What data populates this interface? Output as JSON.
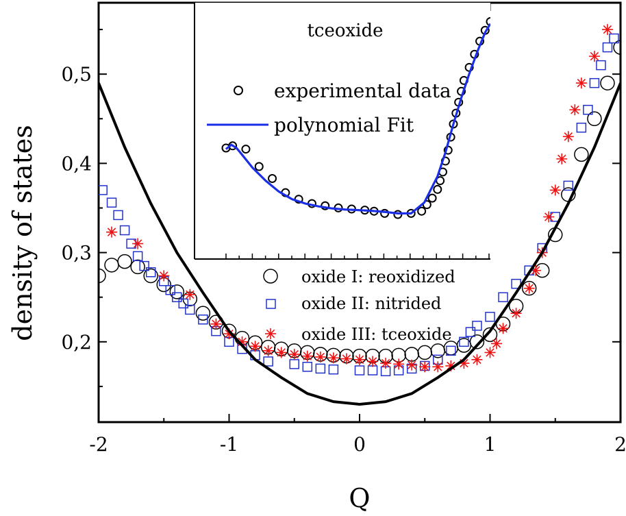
{
  "chart_data": [
    {
      "type": "scatter",
      "xlabel": "Q",
      "ylabel": "density of states",
      "xlim": [
        -2,
        2
      ],
      "ylim": [
        0.11,
        0.58
      ],
      "xticks": [
        -2,
        -1,
        0,
        1,
        2
      ],
      "xtick_labels": [
        "-2",
        "-1",
        "0",
        "1",
        "2"
      ],
      "yticks": [
        0.2,
        0.3,
        0.4,
        0.5
      ],
      "ytick_labels": [
        "0,2",
        "0,3",
        "0,4",
        "0,5"
      ],
      "grid": false,
      "legend_position": "center",
      "series": [
        {
          "name": "oxide I: reoxidized",
          "marker": "circle",
          "color": "#000000",
          "x": [
            -2.0,
            -1.9,
            -1.8,
            -1.7,
            -1.6,
            -1.5,
            -1.4,
            -1.3,
            -1.2,
            -1.1,
            -1.0,
            -0.9,
            -0.8,
            -0.7,
            -0.6,
            -0.5,
            -0.4,
            -0.3,
            -0.2,
            -0.1,
            0.0,
            0.1,
            0.2,
            0.3,
            0.4,
            0.5,
            0.6,
            0.7,
            0.8,
            0.9,
            1.0,
            1.1,
            1.2,
            1.3,
            1.4,
            1.5,
            1.6,
            1.7,
            1.8,
            1.9,
            2.0
          ],
          "y": [
            0.274,
            0.286,
            0.29,
            0.284,
            0.274,
            0.264,
            0.256,
            0.248,
            0.232,
            0.222,
            0.212,
            0.204,
            0.199,
            0.194,
            0.192,
            0.19,
            0.188,
            0.186,
            0.185,
            0.184,
            0.184,
            0.184,
            0.184,
            0.185,
            0.186,
            0.188,
            0.19,
            0.193,
            0.196,
            0.2,
            0.208,
            0.22,
            0.24,
            0.26,
            0.28,
            0.32,
            0.365,
            0.41,
            0.45,
            0.49,
            0.53
          ]
        },
        {
          "name": "oxide II: nitrided",
          "marker": "square",
          "color": "#2233cc",
          "x": [
            -1.97,
            -1.9,
            -1.85,
            -1.8,
            -1.75,
            -1.7,
            -1.65,
            -1.6,
            -1.5,
            -1.45,
            -1.4,
            -1.35,
            -1.3,
            -1.2,
            -1.1,
            -1.0,
            -0.9,
            -0.8,
            -0.7,
            -0.5,
            -0.4,
            -0.3,
            -0.2,
            0.0,
            0.1,
            0.2,
            0.3,
            0.4,
            0.5,
            0.6,
            0.7,
            0.8,
            0.85,
            0.9,
            1.0,
            1.1,
            1.2,
            1.3,
            1.4,
            1.5,
            1.6,
            1.7,
            1.75,
            1.8,
            1.85,
            1.9,
            1.95
          ],
          "y": [
            0.37,
            0.356,
            0.342,
            0.325,
            0.31,
            0.296,
            0.285,
            0.278,
            0.268,
            0.258,
            0.25,
            0.243,
            0.236,
            0.225,
            0.212,
            0.2,
            0.192,
            0.185,
            0.178,
            0.175,
            0.172,
            0.17,
            0.169,
            0.168,
            0.168,
            0.167,
            0.168,
            0.17,
            0.173,
            0.18,
            0.19,
            0.2,
            0.211,
            0.218,
            0.228,
            0.25,
            0.265,
            0.28,
            0.305,
            0.34,
            0.375,
            0.44,
            0.46,
            0.49,
            0.51,
            0.53,
            0.54
          ]
        },
        {
          "name": "oxide III: tceoxide",
          "marker": "asterisk",
          "color": "#ee1111",
          "x": [
            -1.9,
            -1.7,
            -1.5,
            -1.3,
            -1.1,
            -1.0,
            -0.9,
            -0.8,
            -0.7,
            -0.6,
            -0.5,
            -0.4,
            -0.3,
            -0.2,
            -0.1,
            0.0,
            0.1,
            0.2,
            0.3,
            0.4,
            0.5,
            0.6,
            0.7,
            0.8,
            0.9,
            1.0,
            1.05,
            1.1,
            1.2,
            1.3,
            1.35,
            1.4,
            1.45,
            1.5,
            1.55,
            1.6,
            1.65,
            1.7,
            1.8,
            1.9
          ],
          "y": [
            0.323,
            0.31,
            0.274,
            0.253,
            0.22,
            0.209,
            0.2,
            0.195,
            0.19,
            0.188,
            0.186,
            0.184,
            0.183,
            0.182,
            0.181,
            0.18,
            0.178,
            0.176,
            0.175,
            0.174,
            0.172,
            0.172,
            0.173,
            0.176,
            0.18,
            0.188,
            0.198,
            0.215,
            0.232,
            0.26,
            0.28,
            0.3,
            0.34,
            0.37,
            0.405,
            0.43,
            0.46,
            0.49,
            0.52,
            0.55
          ]
        },
        {
          "name": "",
          "type": "line",
          "color": "#000000",
          "x": [
            -2.0,
            -1.8,
            -1.6,
            -1.4,
            -1.2,
            -1.0,
            -0.8,
            -0.6,
            -0.4,
            -0.2,
            0.0,
            0.2,
            0.4,
            0.6,
            0.8,
            1.0,
            1.2,
            1.4,
            1.6,
            1.8,
            2.0
          ],
          "y": [
            0.49,
            0.418,
            0.355,
            0.3,
            0.255,
            0.212,
            0.18,
            0.16,
            0.142,
            0.133,
            0.13,
            0.133,
            0.142,
            0.16,
            0.18,
            0.212,
            0.255,
            0.3,
            0.355,
            0.418,
            0.49
          ]
        }
      ]
    },
    {
      "type": "scatter",
      "title": "tceoxide",
      "xlim": [
        -1.04,
        1.04
      ],
      "ylim": [
        0,
        1
      ],
      "series": [
        {
          "name": "experimental data",
          "marker": "circle",
          "color": "#000000",
          "x": [
            -1.0,
            -0.95,
            -0.85,
            -0.75,
            -0.65,
            -0.55,
            -0.45,
            -0.35,
            -0.25,
            -0.15,
            -0.05,
            0.05,
            0.12,
            0.2,
            0.3,
            0.4,
            0.48,
            0.52,
            0.56,
            0.6,
            0.62,
            0.64,
            0.66,
            0.68,
            0.7,
            0.72,
            0.74,
            0.76,
            0.78,
            0.8,
            0.84,
            0.88,
            0.92,
            0.96,
            1.0
          ],
          "y": [
            0.39,
            0.4,
            0.385,
            0.305,
            0.25,
            0.185,
            0.155,
            0.135,
            0.125,
            0.115,
            0.11,
            0.105,
            0.1,
            0.09,
            0.085,
            0.09,
            0.1,
            0.13,
            0.16,
            0.2,
            0.24,
            0.28,
            0.33,
            0.38,
            0.44,
            0.5,
            0.55,
            0.6,
            0.65,
            0.7,
            0.76,
            0.82,
            0.88,
            0.93,
            0.97
          ]
        },
        {
          "name": "polynomial Fit",
          "type": "line",
          "color": "#1a2ee6",
          "x": [
            -1.0,
            -0.96,
            -0.92,
            -0.88,
            -0.8,
            -0.7,
            -0.6,
            -0.5,
            -0.4,
            -0.3,
            -0.2,
            -0.1,
            0.0,
            0.1,
            0.2,
            0.3,
            0.4,
            0.5,
            0.6,
            0.66,
            0.72,
            0.78,
            0.84,
            0.9,
            0.96,
            1.0
          ],
          "y": [
            0.385,
            0.405,
            0.39,
            0.36,
            0.3,
            0.24,
            0.19,
            0.155,
            0.135,
            0.122,
            0.113,
            0.108,
            0.105,
            0.102,
            0.097,
            0.09,
            0.09,
            0.14,
            0.26,
            0.37,
            0.5,
            0.62,
            0.73,
            0.83,
            0.92,
            0.96
          ]
        }
      ]
    }
  ]
}
